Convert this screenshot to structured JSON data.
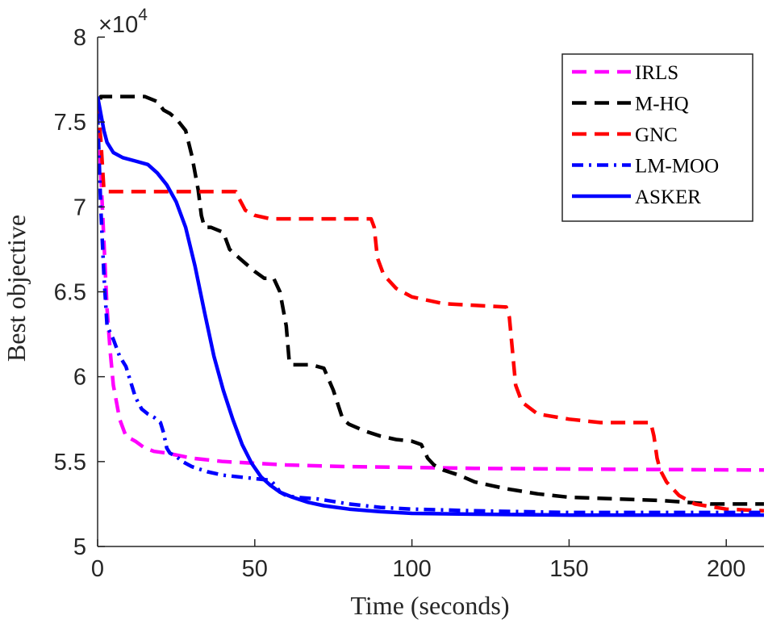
{
  "chart_data": {
    "type": "line",
    "title": "",
    "xlabel": "Time (seconds)",
    "ylabel": "Best objective",
    "xlim": [
      0,
      212
    ],
    "ylim": [
      5,
      8
    ],
    "y_scale_exponent": {
      "base": "×10",
      "power": "4"
    },
    "xticks": [
      0,
      50,
      100,
      150,
      200
    ],
    "xtick_labels": [
      "0",
      "50",
      "100",
      "150",
      "200"
    ],
    "yticks": [
      5,
      5.5,
      6,
      6.5,
      7,
      7.5,
      8
    ],
    "ytick_labels": [
      "5",
      "5.5",
      "6",
      "6.5",
      "7",
      "7.5",
      "8"
    ],
    "grid": false,
    "legend_position": "top-right",
    "series": [
      {
        "name": "IRLS",
        "color": "#ff00ff",
        "dash": "dashed",
        "x": [
          0,
          1,
          2,
          3,
          4,
          5,
          6,
          7,
          9,
          12,
          15,
          18,
          22,
          30,
          40,
          60,
          80,
          120,
          160,
          212
        ],
        "y": [
          7.6,
          7.2,
          6.8,
          6.4,
          6.15,
          5.95,
          5.85,
          5.75,
          5.65,
          5.62,
          5.58,
          5.56,
          5.55,
          5.52,
          5.5,
          5.48,
          5.47,
          5.46,
          5.455,
          5.45
        ]
      },
      {
        "name": "M-HQ",
        "color": "#000000",
        "dash": "dashed",
        "x": [
          0,
          1,
          15,
          19,
          21,
          23,
          25,
          28,
          30,
          32,
          33,
          34,
          36,
          40,
          42,
          45,
          50,
          53,
          56,
          58,
          60,
          61,
          62,
          64,
          68,
          72,
          75,
          78,
          80,
          85,
          90,
          95,
          100,
          103,
          105,
          107,
          110,
          115,
          120,
          125,
          130,
          140,
          150,
          165,
          180,
          195,
          212
        ],
        "y": [
          7.5,
          7.65,
          7.65,
          7.62,
          7.57,
          7.55,
          7.52,
          7.45,
          7.3,
          7.1,
          6.95,
          6.88,
          6.88,
          6.85,
          6.75,
          6.7,
          6.62,
          6.58,
          6.58,
          6.5,
          6.3,
          6.08,
          6.07,
          6.07,
          6.07,
          6.05,
          5.92,
          5.75,
          5.72,
          5.68,
          5.65,
          5.63,
          5.62,
          5.6,
          5.52,
          5.48,
          5.45,
          5.42,
          5.38,
          5.36,
          5.34,
          5.31,
          5.29,
          5.28,
          5.27,
          5.25,
          5.25
        ]
      },
      {
        "name": "GNC",
        "color": "#ff0000",
        "dash": "dashed",
        "x": [
          0,
          1,
          2,
          3,
          44,
          45,
          47,
          50,
          55,
          87,
          88,
          89,
          91,
          95,
          100,
          110,
          120,
          130,
          131,
          132,
          133,
          135,
          140,
          150,
          160,
          176,
          177,
          178,
          179,
          181,
          185,
          190,
          200,
          212
        ],
        "y": [
          7.6,
          7.4,
          7.1,
          7.09,
          7.09,
          7.05,
          6.98,
          6.95,
          6.93,
          6.93,
          6.88,
          6.7,
          6.6,
          6.52,
          6.47,
          6.43,
          6.42,
          6.41,
          6.35,
          6.15,
          5.95,
          5.85,
          5.78,
          5.75,
          5.73,
          5.73,
          5.65,
          5.52,
          5.45,
          5.38,
          5.3,
          5.25,
          5.22,
          5.21
        ]
      },
      {
        "name": "LM-MOO",
        "color": "#0000ff",
        "dash": "dashdot",
        "x": [
          0,
          1,
          2,
          3,
          5,
          7,
          9,
          10,
          12,
          14,
          16,
          18,
          20,
          21,
          22,
          23,
          25,
          27,
          30,
          35,
          40,
          45,
          50,
          55,
          57,
          58,
          60,
          63,
          70,
          80,
          90,
          100,
          120,
          150,
          212
        ],
        "y": [
          7.55,
          7.0,
          6.6,
          6.3,
          6.22,
          6.12,
          6.06,
          6.0,
          5.88,
          5.81,
          5.78,
          5.76,
          5.73,
          5.67,
          5.58,
          5.55,
          5.53,
          5.5,
          5.47,
          5.44,
          5.42,
          5.41,
          5.4,
          5.39,
          5.35,
          5.32,
          5.3,
          5.29,
          5.28,
          5.25,
          5.23,
          5.22,
          5.21,
          5.2,
          5.2
        ]
      },
      {
        "name": "ASKER",
        "color": "#0000ff",
        "dash": "solid",
        "x": [
          0,
          1,
          2,
          3,
          5,
          8,
          12,
          16,
          19,
          22,
          25,
          28,
          31,
          34,
          37,
          40,
          43,
          46,
          49,
          52,
          55,
          58,
          62,
          67,
          72,
          80,
          90,
          100,
          120,
          150,
          212
        ],
        "y": [
          7.65,
          7.55,
          7.45,
          7.38,
          7.32,
          7.29,
          7.27,
          7.25,
          7.2,
          7.13,
          7.03,
          6.88,
          6.65,
          6.38,
          6.12,
          5.92,
          5.75,
          5.6,
          5.49,
          5.41,
          5.36,
          5.32,
          5.29,
          5.26,
          5.24,
          5.22,
          5.205,
          5.195,
          5.19,
          5.185,
          5.185
        ]
      }
    ]
  }
}
